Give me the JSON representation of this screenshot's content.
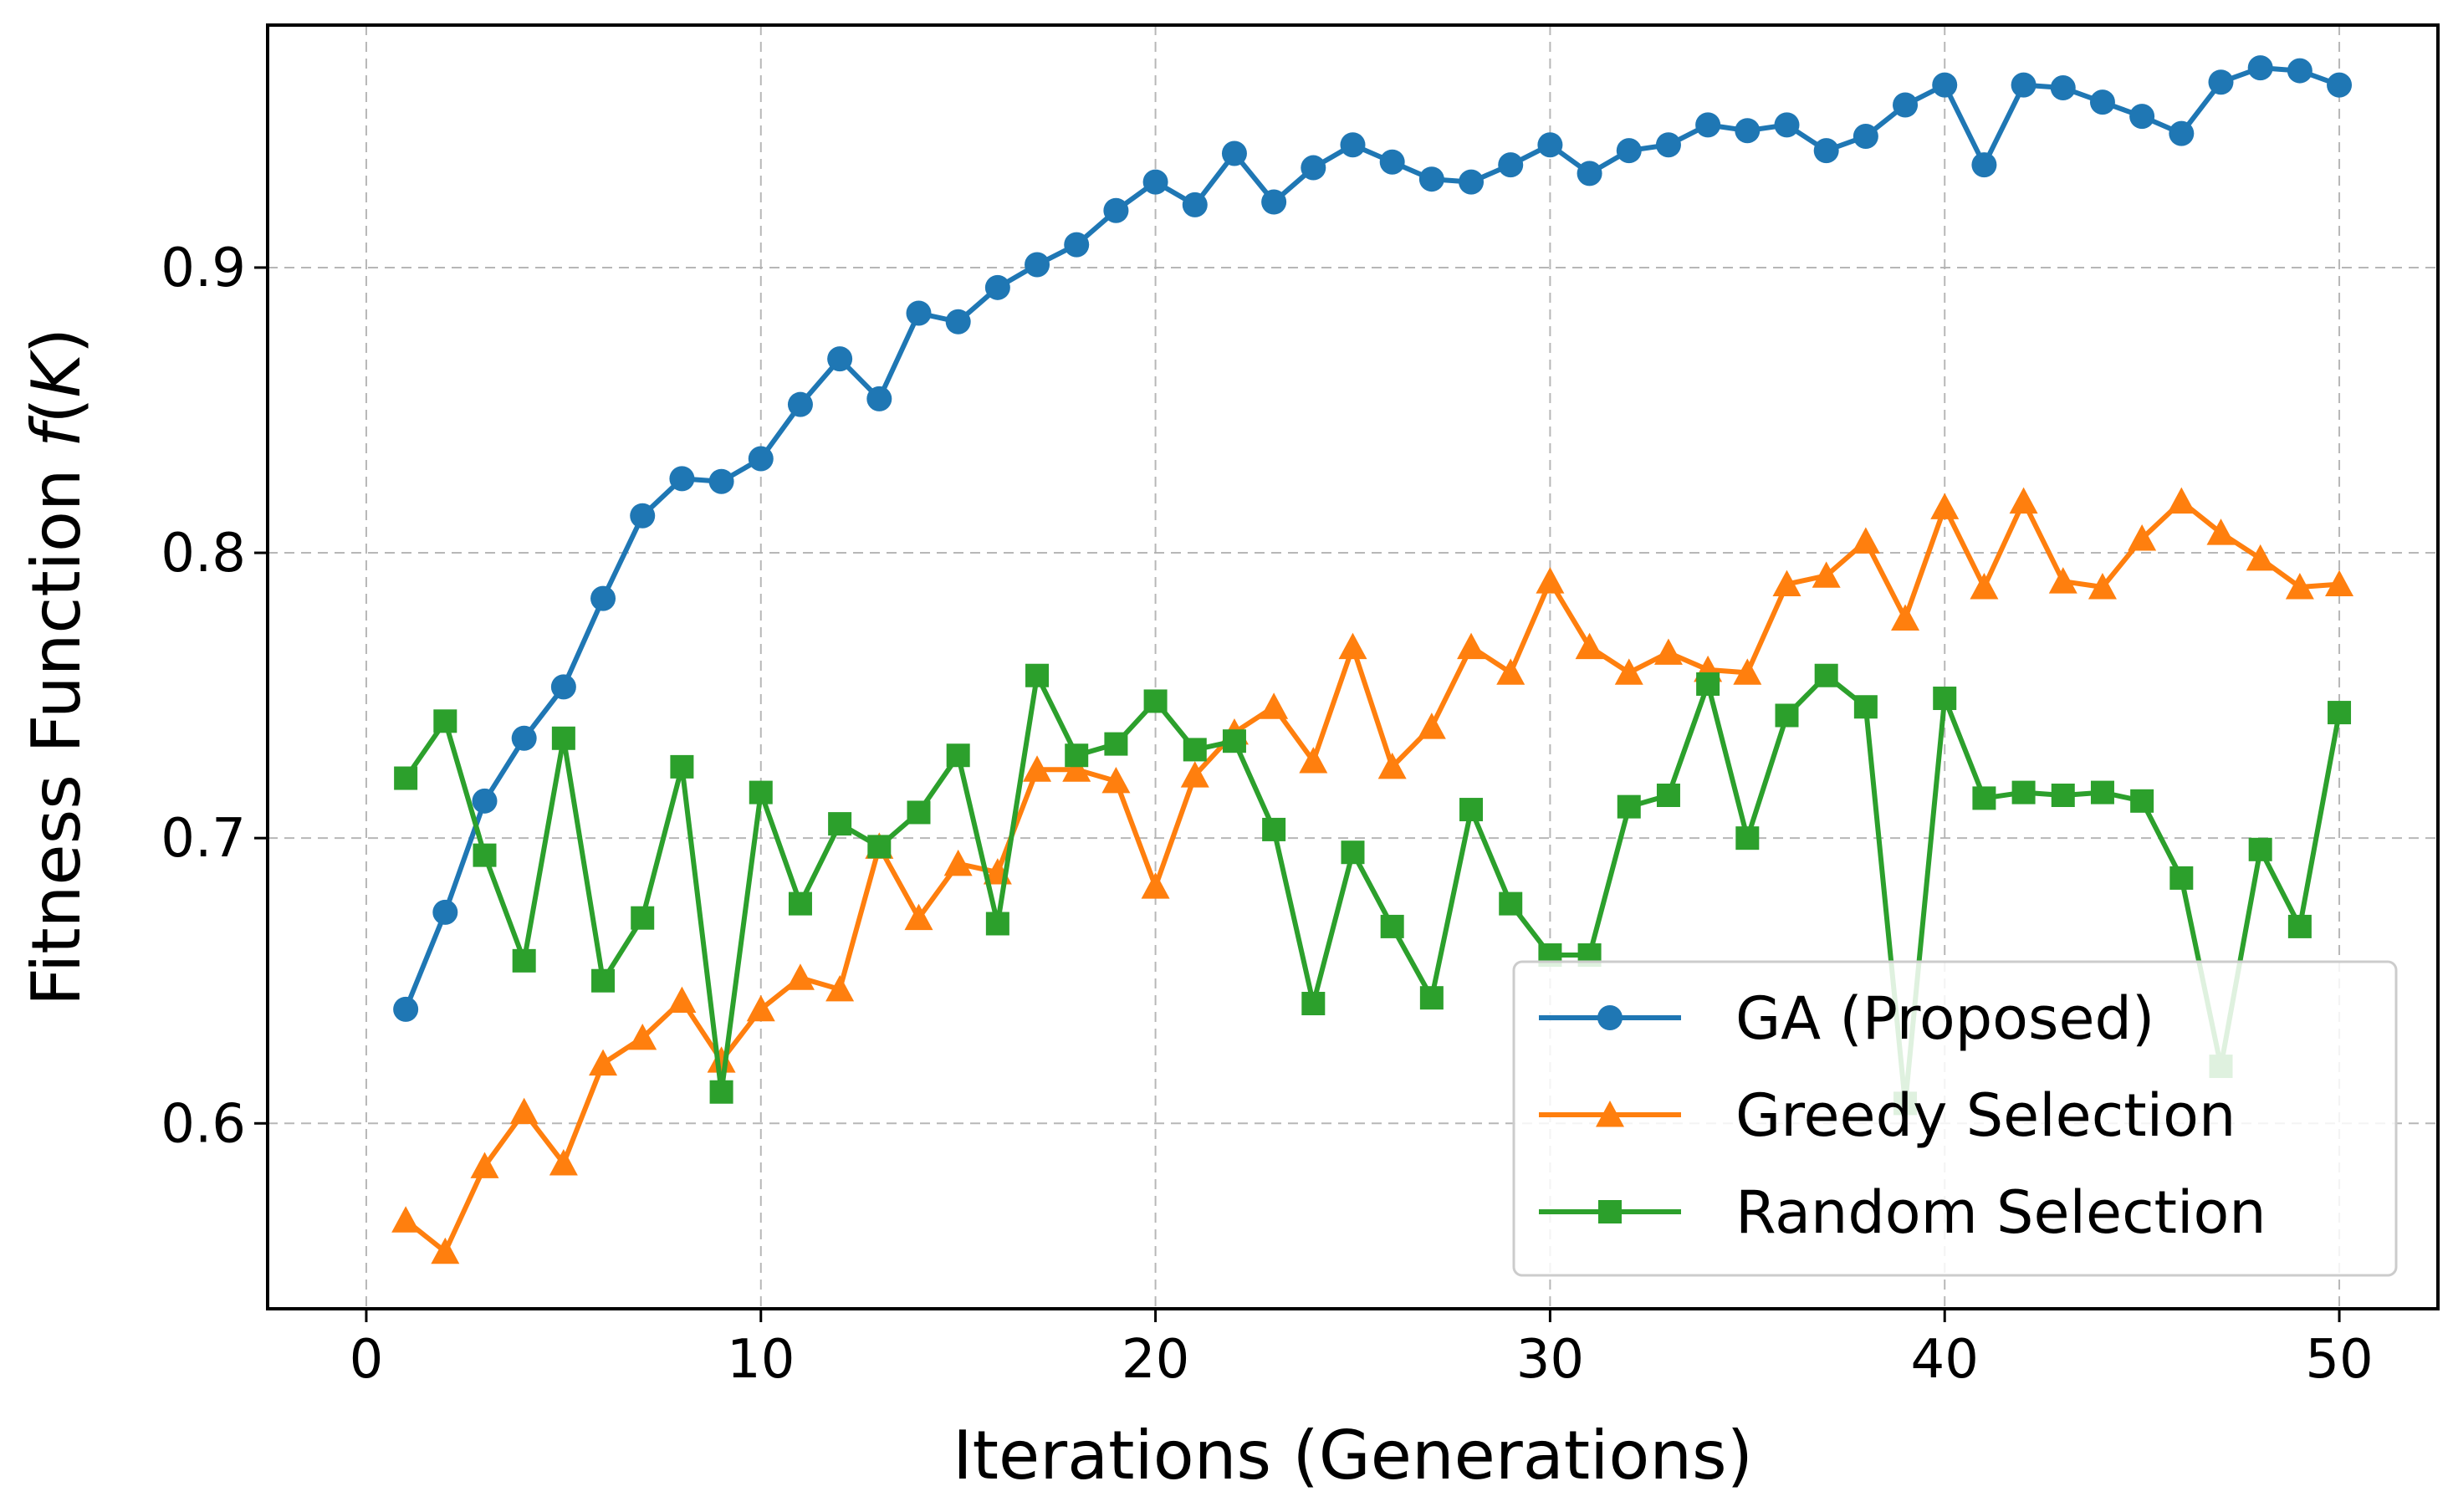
{
  "chart_data": {
    "type": "line",
    "title": "",
    "xlabel": "Iterations (Generations)",
    "ylabel_prefix": "Fitness Function ",
    "ylabel_italic": "f",
    "ylabel_open": "(",
    "ylabel_var": "K",
    "ylabel_close": ")",
    "xlim": [
      -2.5,
      52.5
    ],
    "ylim": [
      0.535,
      0.985
    ],
    "xticks": [
      0,
      10,
      20,
      30,
      40,
      50
    ],
    "xtick_labels": [
      "0",
      "10",
      "20",
      "30",
      "40",
      "50"
    ],
    "yticks": [
      0.6,
      0.7,
      0.8,
      0.9
    ],
    "ytick_labels": [
      "0.6",
      "0.7",
      "0.8",
      "0.9"
    ],
    "grid": true,
    "legend_position": "lower-right",
    "x": [
      1,
      2,
      3,
      4,
      5,
      6,
      7,
      8,
      9,
      10,
      11,
      12,
      13,
      14,
      15,
      16,
      17,
      18,
      19,
      20,
      21,
      22,
      23,
      24,
      25,
      26,
      27,
      28,
      29,
      30,
      31,
      32,
      33,
      34,
      35,
      36,
      37,
      38,
      39,
      40,
      41,
      42,
      43,
      44,
      45,
      46,
      47,
      48,
      49,
      50
    ],
    "series": [
      {
        "name": "GA (Proposed)",
        "color": "#1f77b4",
        "marker": "circle",
        "values": [
          0.64,
          0.674,
          0.713,
          0.735,
          0.753,
          0.784,
          0.813,
          0.826,
          0.825,
          0.833,
          0.852,
          0.868,
          0.854,
          0.884,
          0.881,
          0.893,
          0.901,
          0.908,
          0.92,
          0.93,
          0.922,
          0.94,
          0.923,
          0.935,
          0.943,
          0.937,
          0.931,
          0.93,
          0.936,
          0.943,
          0.933,
          0.941,
          0.943,
          0.95,
          0.948,
          0.95,
          0.941,
          0.946,
          0.957,
          0.964,
          0.936,
          0.964,
          0.963,
          0.958,
          0.953,
          0.947,
          0.965,
          0.97,
          0.969,
          0.964
        ]
      },
      {
        "name": "Greedy Selection",
        "color": "#ff7f0e",
        "marker": "triangle",
        "values": [
          0.566,
          0.555,
          0.585,
          0.604,
          0.586,
          0.621,
          0.63,
          0.643,
          0.622,
          0.64,
          0.651,
          0.647,
          0.697,
          0.672,
          0.691,
          0.688,
          0.724,
          0.724,
          0.72,
          0.683,
          0.722,
          0.737,
          0.746,
          0.727,
          0.767,
          0.725,
          0.739,
          0.767,
          0.758,
          0.79,
          0.767,
          0.758,
          0.765,
          0.759,
          0.758,
          0.789,
          0.792,
          0.804,
          0.777,
          0.816,
          0.788,
          0.818,
          0.79,
          0.788,
          0.805,
          0.818,
          0.807,
          0.798,
          0.788,
          0.789
        ]
      },
      {
        "name": "Random Selection",
        "color": "#2ca02c",
        "marker": "square",
        "values": [
          0.721,
          0.741,
          0.694,
          0.657,
          0.735,
          0.65,
          0.672,
          0.725,
          0.611,
          0.716,
          0.677,
          0.705,
          0.697,
          0.709,
          0.729,
          0.67,
          0.757,
          0.729,
          0.733,
          0.748,
          0.731,
          0.734,
          0.703,
          0.642,
          0.695,
          0.669,
          0.644,
          0.71,
          0.677,
          0.659,
          0.659,
          0.711,
          0.715,
          0.754,
          0.7,
          0.743,
          0.757,
          0.746,
          0.607,
          0.749,
          0.714,
          0.716,
          0.715,
          0.716,
          0.713,
          0.686,
          0.62,
          0.696,
          0.669,
          0.744
        ]
      }
    ]
  }
}
